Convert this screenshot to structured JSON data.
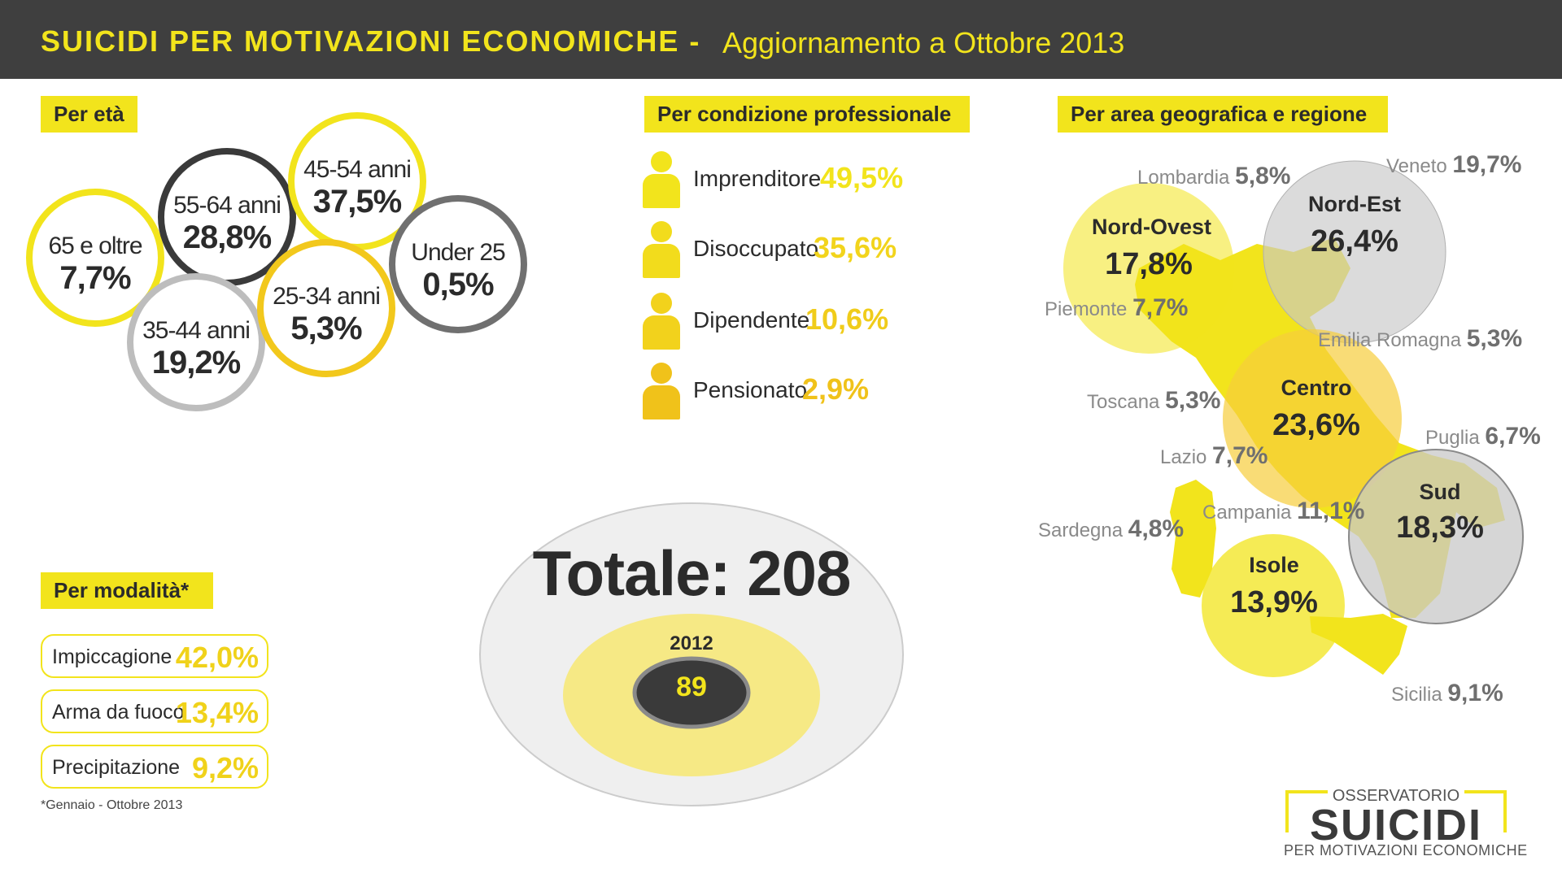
{
  "header": {
    "title": "SUICIDI PER MOTIVAZIONI ECONOMICHE -",
    "subtitle": "Aggiornamento a Ottobre 2013"
  },
  "sections": {
    "age": "Per età",
    "profession": "Per condizione professionale",
    "geo": "Per area geografica e regione",
    "modality": "Per modalità*"
  },
  "colors": {
    "yellow": "#f2e41c",
    "dark": "#3f3f3f",
    "grey": "#bdbdbd"
  },
  "chart_data": [
    {
      "type": "bubble",
      "categories": [
        "65 e oltre",
        "55-64 anni",
        "45-54 anni",
        "35-44 anni",
        "25-34 anni",
        "Under 25"
      ],
      "labels": [
        "7,7%",
        "28,8%",
        "37,5%",
        "19,2%",
        "5,3%",
        "0,5%"
      ],
      "values": [
        7.7,
        28.8,
        37.5,
        19.2,
        5.3,
        0.5
      ]
    },
    {
      "type": "table",
      "categories": [
        "Imprenditore",
        "Disoccupato",
        "Dipendente",
        "Pensionato"
      ],
      "labels": [
        "49,5%",
        "35,6%",
        "10,6%",
        "2,9%"
      ],
      "values": [
        49.5,
        35.6,
        10.6,
        2.9
      ]
    },
    {
      "type": "table",
      "categories": [
        "Impiccagione",
        "Arma da fuoco",
        "Precipitazione"
      ],
      "labels": [
        "42,0%",
        "13,4%",
        "9,2%"
      ],
      "values": [
        42.0,
        13.4,
        9.2
      ]
    },
    {
      "type": "bubble",
      "total_label": "Totale: 208",
      "total": 208,
      "year_label": "2012",
      "year_value_label": "89",
      "year_value": 89
    },
    {
      "type": "table",
      "areas": [
        {
          "name": "Nord-Ovest",
          "label": "17,8%",
          "value": 17.8
        },
        {
          "name": "Nord-Est",
          "label": "26,4%",
          "value": 26.4
        },
        {
          "name": "Centro",
          "label": "23,6%",
          "value": 23.6
        },
        {
          "name": "Sud",
          "label": "18,3%",
          "value": 18.3
        },
        {
          "name": "Isole",
          "label": "13,9%",
          "value": 13.9
        }
      ],
      "regions": [
        {
          "name": "Lombardia",
          "label": "5,8%",
          "value": 5.8
        },
        {
          "name": "Veneto",
          "label": "19,7%",
          "value": 19.7
        },
        {
          "name": "Piemonte",
          "label": "7,7%",
          "value": 7.7
        },
        {
          "name": "Emilia Romagna",
          "label": "5,3%",
          "value": 5.3
        },
        {
          "name": "Toscana",
          "label": "5,3%",
          "value": 5.3
        },
        {
          "name": "Lazio",
          "label": "7,7%",
          "value": 7.7
        },
        {
          "name": "Puglia",
          "label": "6,7%",
          "value": 6.7
        },
        {
          "name": "Campania",
          "label": "11,1%",
          "value": 11.1
        },
        {
          "name": "Sardegna",
          "label": "4,8%",
          "value": 4.8
        },
        {
          "name": "Sicilia",
          "label": "9,1%",
          "value": 9.1
        }
      ]
    }
  ],
  "footnote": "*Gennaio - Ottobre 2013",
  "logo": {
    "top": "OSSERVATORIO",
    "main": "SUICIDI",
    "bottom": "PER MOTIVAZIONI ECONOMICHE"
  }
}
